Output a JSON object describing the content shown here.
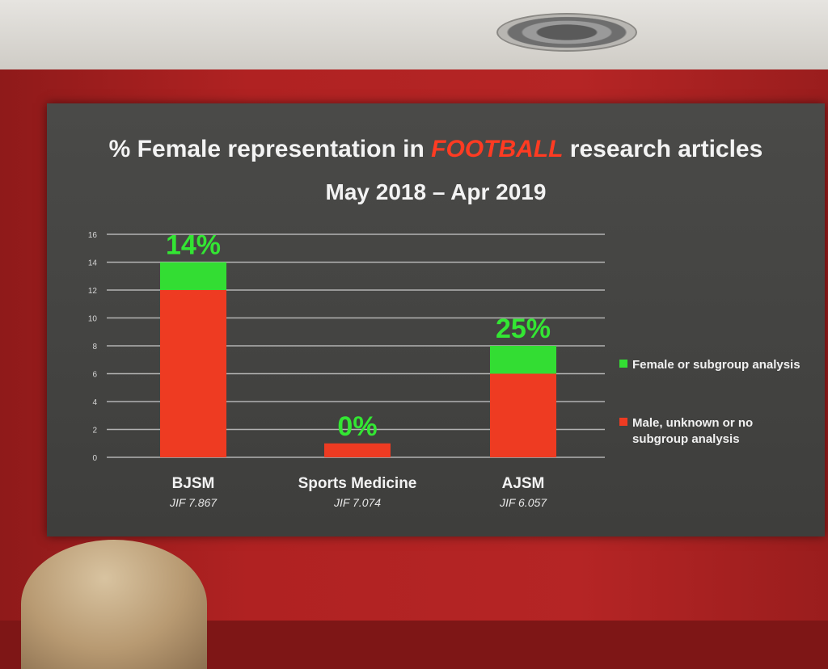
{
  "slide": {
    "title_pre": "% Female representation in",
    "title_emph": "FOOTBALL",
    "title_post": "research articles",
    "subtitle": "May 2018 – Apr 2019"
  },
  "chart_data": {
    "type": "bar",
    "stacked": true,
    "categories": [
      "BJSM",
      "Sports Medicine",
      "AJSM"
    ],
    "category_notes": [
      "JIF 7.867",
      "JIF 7.074",
      "JIF 6.057"
    ],
    "series": [
      {
        "name": "Male, unknown or no subgroup analysis",
        "color": "#ee3b22",
        "values": [
          12,
          1,
          6
        ]
      },
      {
        "name": "Female or subgroup analysis",
        "color": "#33dd33",
        "values": [
          2,
          0,
          2
        ]
      }
    ],
    "bar_labels": [
      "14%",
      "0%",
      "25%"
    ],
    "bar_label_color": "#33e633",
    "yticks": [
      "0",
      "2",
      "4",
      "6",
      "8",
      "10",
      "12",
      "14",
      "16"
    ],
    "ylim": [
      0,
      16
    ],
    "grid": true,
    "legend_position": "right"
  }
}
